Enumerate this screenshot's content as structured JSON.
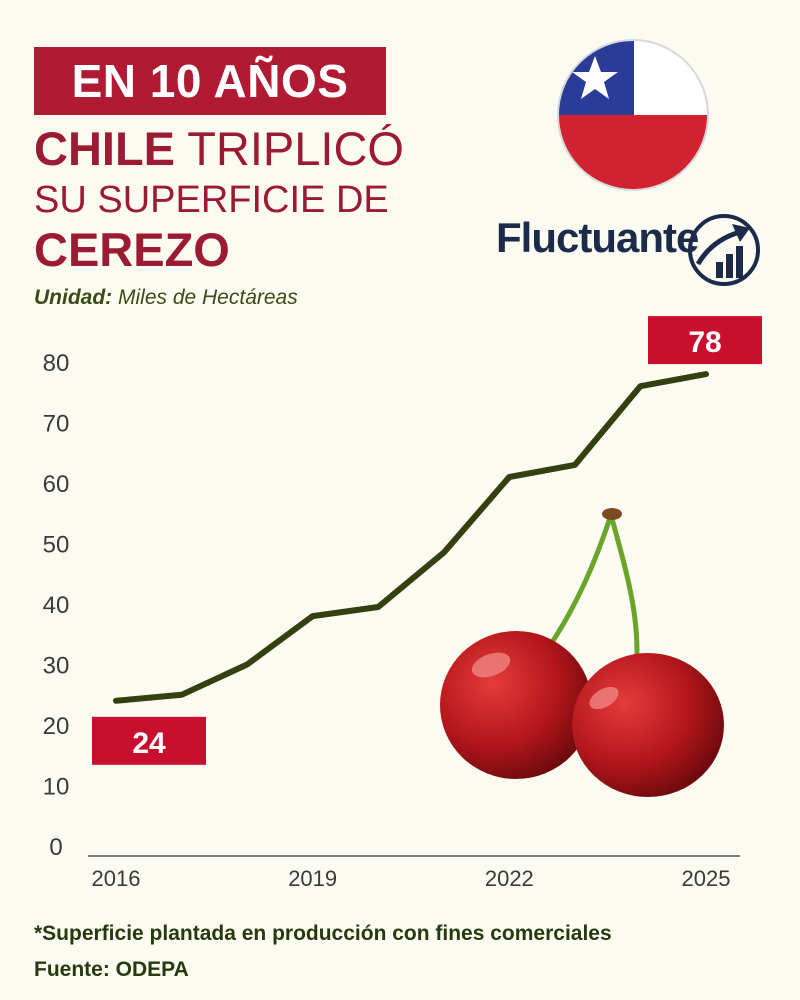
{
  "header": {
    "title_box": "EN 10 AÑOS",
    "line2_bold": "CHILE",
    "line2_rest": " TRIPLICÓ",
    "line3": "SU SUPERFICIE DE",
    "line4": "CEREZO"
  },
  "unit": {
    "label": "Unidad:",
    "value": " Miles de Hectáreas"
  },
  "brand": {
    "name": "Fluctuante"
  },
  "footer": {
    "note": "*Superficie plantada en producción con fines comerciales",
    "source": "Fuente: ODEPA"
  },
  "colors": {
    "line": "#334010",
    "accent": "#c8102e",
    "title": "#9b1b32",
    "background": "#fcfbf2"
  },
  "chart_data": {
    "type": "line",
    "x": [
      2016,
      2017,
      2018,
      2019,
      2020,
      2021,
      2022,
      2023,
      2024,
      2025
    ],
    "values": [
      24,
      25,
      30,
      38,
      39.5,
      48.5,
      61,
      63,
      76,
      78
    ],
    "ylim": [
      0,
      80
    ],
    "yticks": [
      0,
      10,
      20,
      30,
      40,
      50,
      60,
      70,
      80
    ],
    "xticks": [
      2016,
      2019,
      2022,
      2025
    ],
    "callouts": [
      {
        "x": 2016,
        "label": "24"
      },
      {
        "x": 2025,
        "label": "78"
      }
    ],
    "grid": false
  }
}
